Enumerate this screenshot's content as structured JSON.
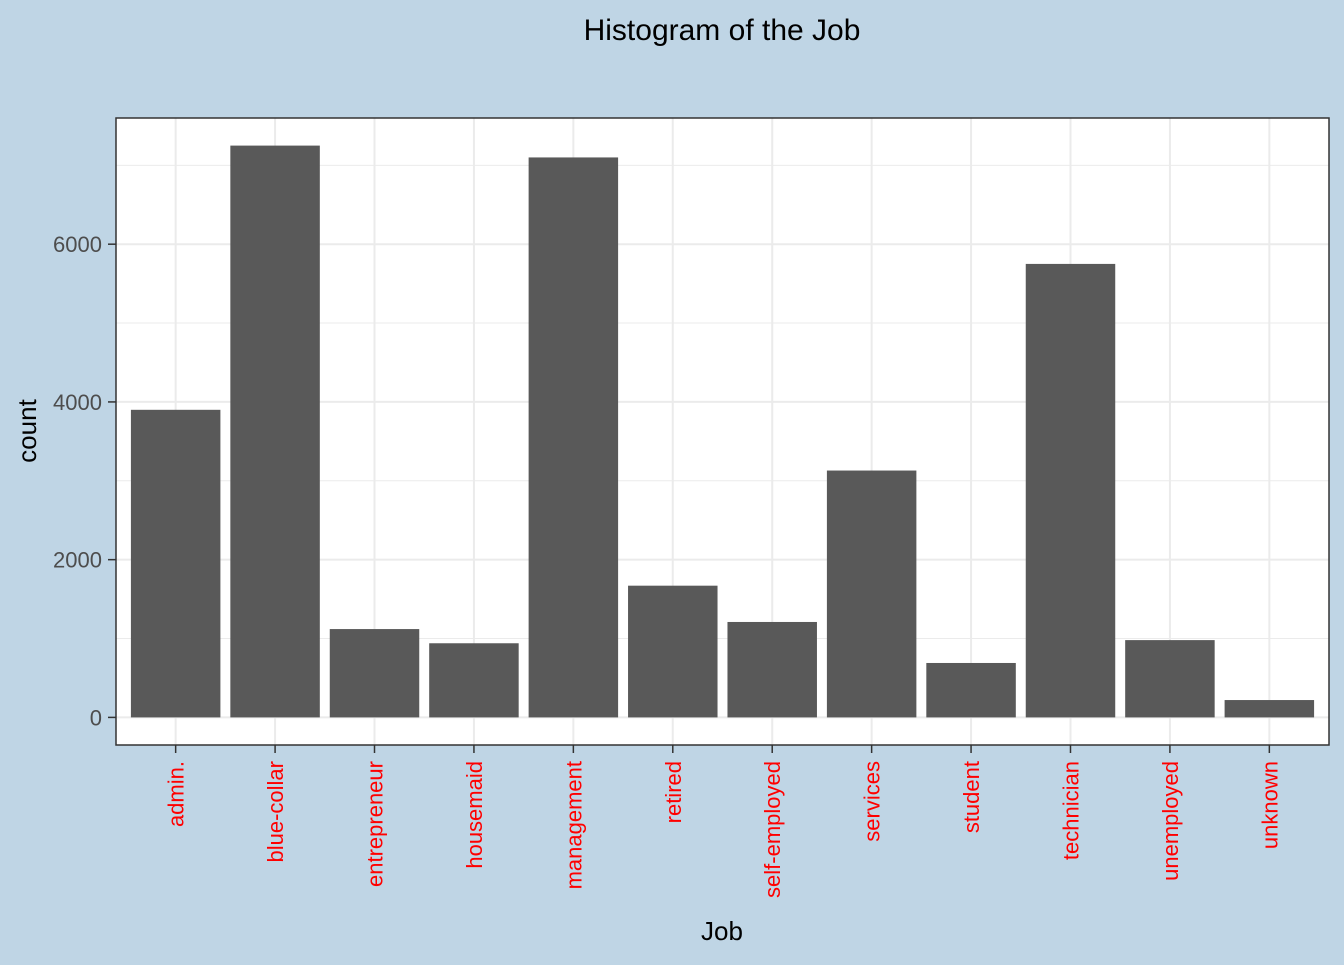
{
  "chart_data": {
    "type": "bar",
    "title": "Histogram of the Job",
    "xlabel": "Job",
    "ylabel": "count",
    "categories": [
      "admin.",
      "blue-collar",
      "entrepreneur",
      "housemaid",
      "management",
      "retired",
      "self-employed",
      "services",
      "student",
      "technician",
      "unemployed",
      "unknown"
    ],
    "values": [
      3900,
      7250,
      1120,
      940,
      7100,
      1670,
      1210,
      3130,
      690,
      5750,
      980,
      220
    ],
    "ylim": [
      -350,
      7600
    ],
    "yticks": [
      0,
      2000,
      4000,
      6000
    ],
    "grid": true,
    "colors": {
      "background": "#bfd5e5",
      "panel": "#ffffff",
      "bar": "#595959",
      "grid": "#ebebeb",
      "x_tick_label": "#ff0000",
      "y_tick_label": "#4d4d4d",
      "text": "#000000"
    }
  }
}
